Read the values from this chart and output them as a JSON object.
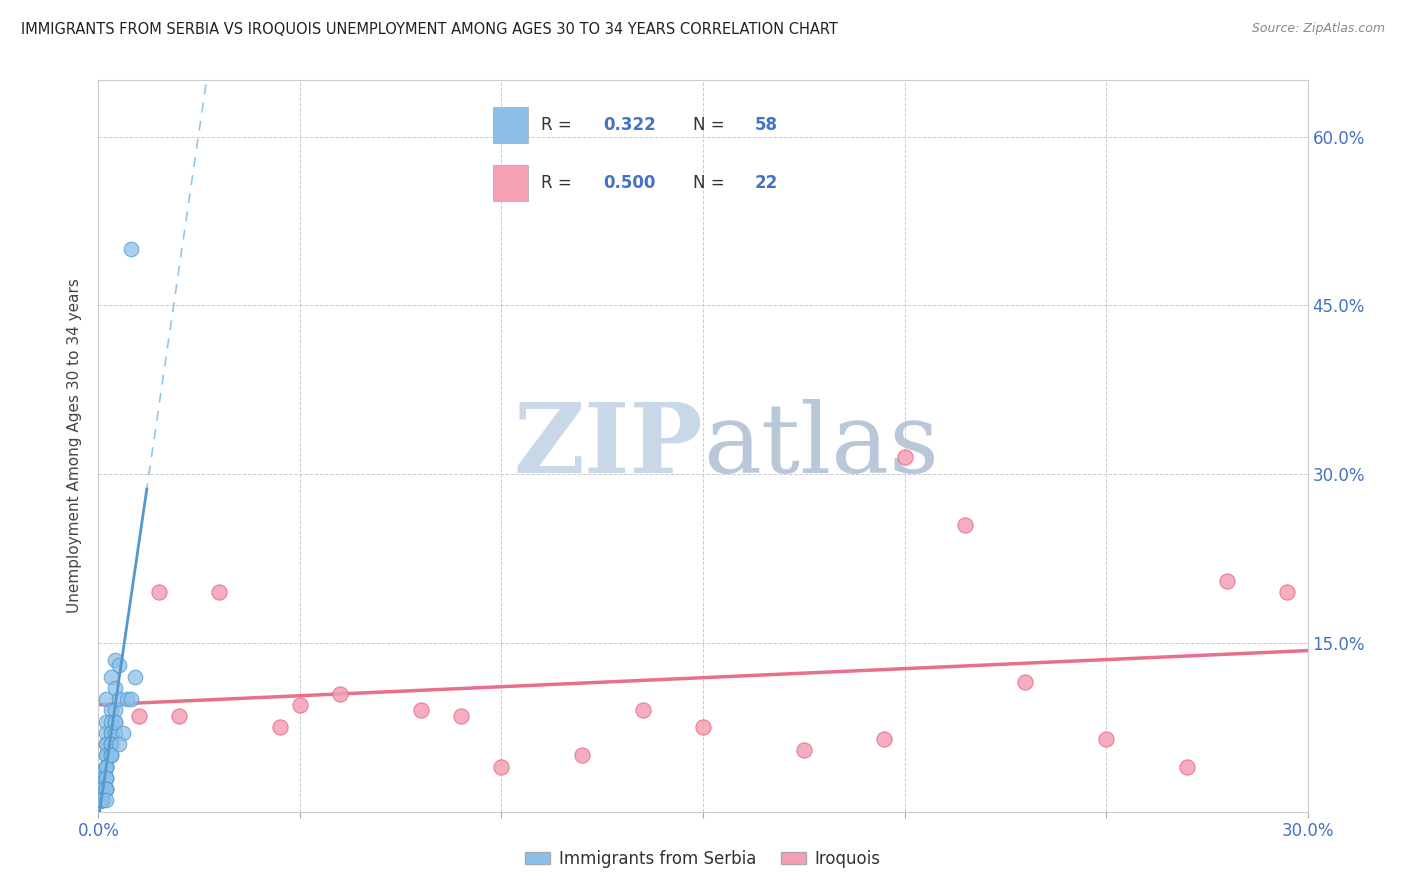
{
  "title": "IMMIGRANTS FROM SERBIA VS IROQUOIS UNEMPLOYMENT AMONG AGES 30 TO 34 YEARS CORRELATION CHART",
  "source": "Source: ZipAtlas.com",
  "ylabel": "Unemployment Among Ages 30 to 34 years",
  "xlim": [
    0,
    0.3
  ],
  "ylim": [
    0,
    0.65
  ],
  "xticks": [
    0.0,
    0.05,
    0.1,
    0.15,
    0.2,
    0.25,
    0.3
  ],
  "xticklabels": [
    "0.0%",
    "",
    "",
    "",
    "",
    "",
    "30.0%"
  ],
  "yticks": [
    0.0,
    0.15,
    0.3,
    0.45,
    0.6
  ],
  "yticklabels_right": [
    "",
    "15.0%",
    "30.0%",
    "45.0%",
    "60.0%"
  ],
  "serbia_color": "#8bbfe8",
  "serbia_color_dark": "#5599cc",
  "iroquois_color": "#f4a0b5",
  "iroquois_line_color": "#e8708a",
  "serbia_R": 0.322,
  "serbia_N": 58,
  "iroquois_R": 0.5,
  "iroquois_N": 22,
  "serbia_label": "Immigrants from Serbia",
  "iroquois_label": "Iroquois",
  "serbia_scatter_x": [
    0.008,
    0.004,
    0.003,
    0.002,
    0.002,
    0.003,
    0.004,
    0.005,
    0.002,
    0.003,
    0.002,
    0.003,
    0.004,
    0.002,
    0.003,
    0.002,
    0.004,
    0.003,
    0.002,
    0.003,
    0.004,
    0.005,
    0.002,
    0.003,
    0.004,
    0.001,
    0.002,
    0.001,
    0.002,
    0.003,
    0.001,
    0.002,
    0.001,
    0.003,
    0.002,
    0.001,
    0.002,
    0.003,
    0.001,
    0.002,
    0.001,
    0.001,
    0.002,
    0.001,
    0.001,
    0.001,
    0.002,
    0.006,
    0.005,
    0.002,
    0.001,
    0.001,
    0.002,
    0.001,
    0.007,
    0.008,
    0.009,
    0.002
  ],
  "serbia_scatter_y": [
    0.5,
    0.135,
    0.12,
    0.1,
    0.08,
    0.09,
    0.11,
    0.13,
    0.07,
    0.08,
    0.06,
    0.07,
    0.09,
    0.05,
    0.07,
    0.06,
    0.08,
    0.06,
    0.05,
    0.05,
    0.07,
    0.1,
    0.04,
    0.06,
    0.08,
    0.03,
    0.04,
    0.03,
    0.04,
    0.06,
    0.02,
    0.04,
    0.02,
    0.05,
    0.03,
    0.02,
    0.03,
    0.05,
    0.02,
    0.03,
    0.01,
    0.01,
    0.02,
    0.01,
    0.02,
    0.01,
    0.02,
    0.07,
    0.06,
    0.02,
    0.01,
    0.01,
    0.02,
    0.01,
    0.1,
    0.1,
    0.12,
    0.01
  ],
  "iroquois_scatter_x": [
    0.01,
    0.015,
    0.02,
    0.03,
    0.045,
    0.05,
    0.06,
    0.08,
    0.09,
    0.1,
    0.12,
    0.135,
    0.15,
    0.175,
    0.195,
    0.2,
    0.215,
    0.23,
    0.25,
    0.27,
    0.28,
    0.295
  ],
  "iroquois_scatter_y": [
    0.085,
    0.195,
    0.085,
    0.195,
    0.075,
    0.095,
    0.105,
    0.09,
    0.085,
    0.04,
    0.05,
    0.09,
    0.075,
    0.055,
    0.065,
    0.315,
    0.255,
    0.115,
    0.065,
    0.04,
    0.205,
    0.195
  ],
  "grid_color": "#c8c8c8",
  "background_color": "#ffffff",
  "watermark_zip_color": "#c8d8e8",
  "watermark_atlas_color": "#b8c8d8"
}
